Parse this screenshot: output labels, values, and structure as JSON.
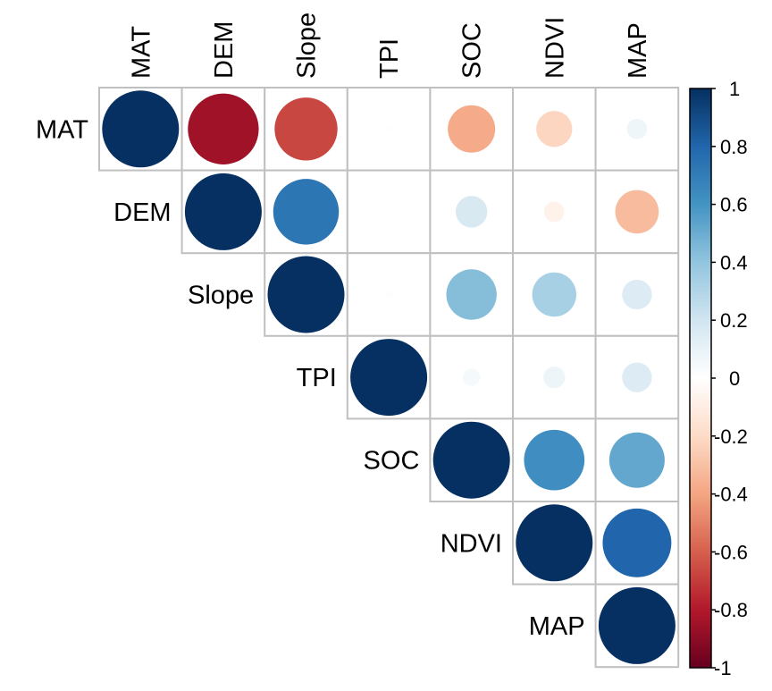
{
  "chart_data": {
    "type": "heatmap",
    "style": "corrplot-circle-upper",
    "title": "",
    "variables": [
      "MAT",
      "DEM",
      "Slope",
      "TPI",
      "SOC",
      "NDVI",
      "MAP"
    ],
    "matrix": [
      [
        1.0,
        -0.85,
        -0.67,
        0.01,
        -0.38,
        -0.22,
        0.07
      ],
      [
        -0.85,
        1.0,
        0.73,
        0.0,
        0.17,
        -0.07,
        -0.32
      ],
      [
        -0.67,
        0.73,
        1.0,
        -0.01,
        0.43,
        0.33,
        0.15
      ],
      [
        0.01,
        0.0,
        -0.01,
        1.0,
        0.05,
        0.08,
        0.15
      ],
      [
        -0.38,
        0.17,
        0.43,
        0.05,
        1.0,
        0.62,
        0.52
      ],
      [
        -0.22,
        -0.07,
        0.33,
        0.08,
        0.62,
        1.0,
        0.8
      ],
      [
        0.07,
        -0.32,
        0.15,
        0.15,
        0.52,
        0.8,
        1.0
      ]
    ],
    "triangle": "upper",
    "colorbar": {
      "range": [
        -1,
        1
      ],
      "ticks": [
        "1",
        "0.8",
        "0.6",
        "0.4",
        "0.2",
        "0",
        "-0.2",
        "-0.4",
        "-0.6",
        "-0.8",
        "-1"
      ],
      "tick_values": [
        1,
        0.8,
        0.6,
        0.4,
        0.2,
        0,
        -0.2,
        -0.4,
        -0.6,
        -0.8,
        -1
      ],
      "palette": [
        "#67001F",
        "#B2182B",
        "#D6604D",
        "#F4A582",
        "#FDDBC7",
        "#FFFFFF",
        "#D1E5F0",
        "#92C5DE",
        "#4393C3",
        "#2166AC",
        "#053061"
      ],
      "placement": "right"
    },
    "grid_color": "#C0C0C0"
  }
}
